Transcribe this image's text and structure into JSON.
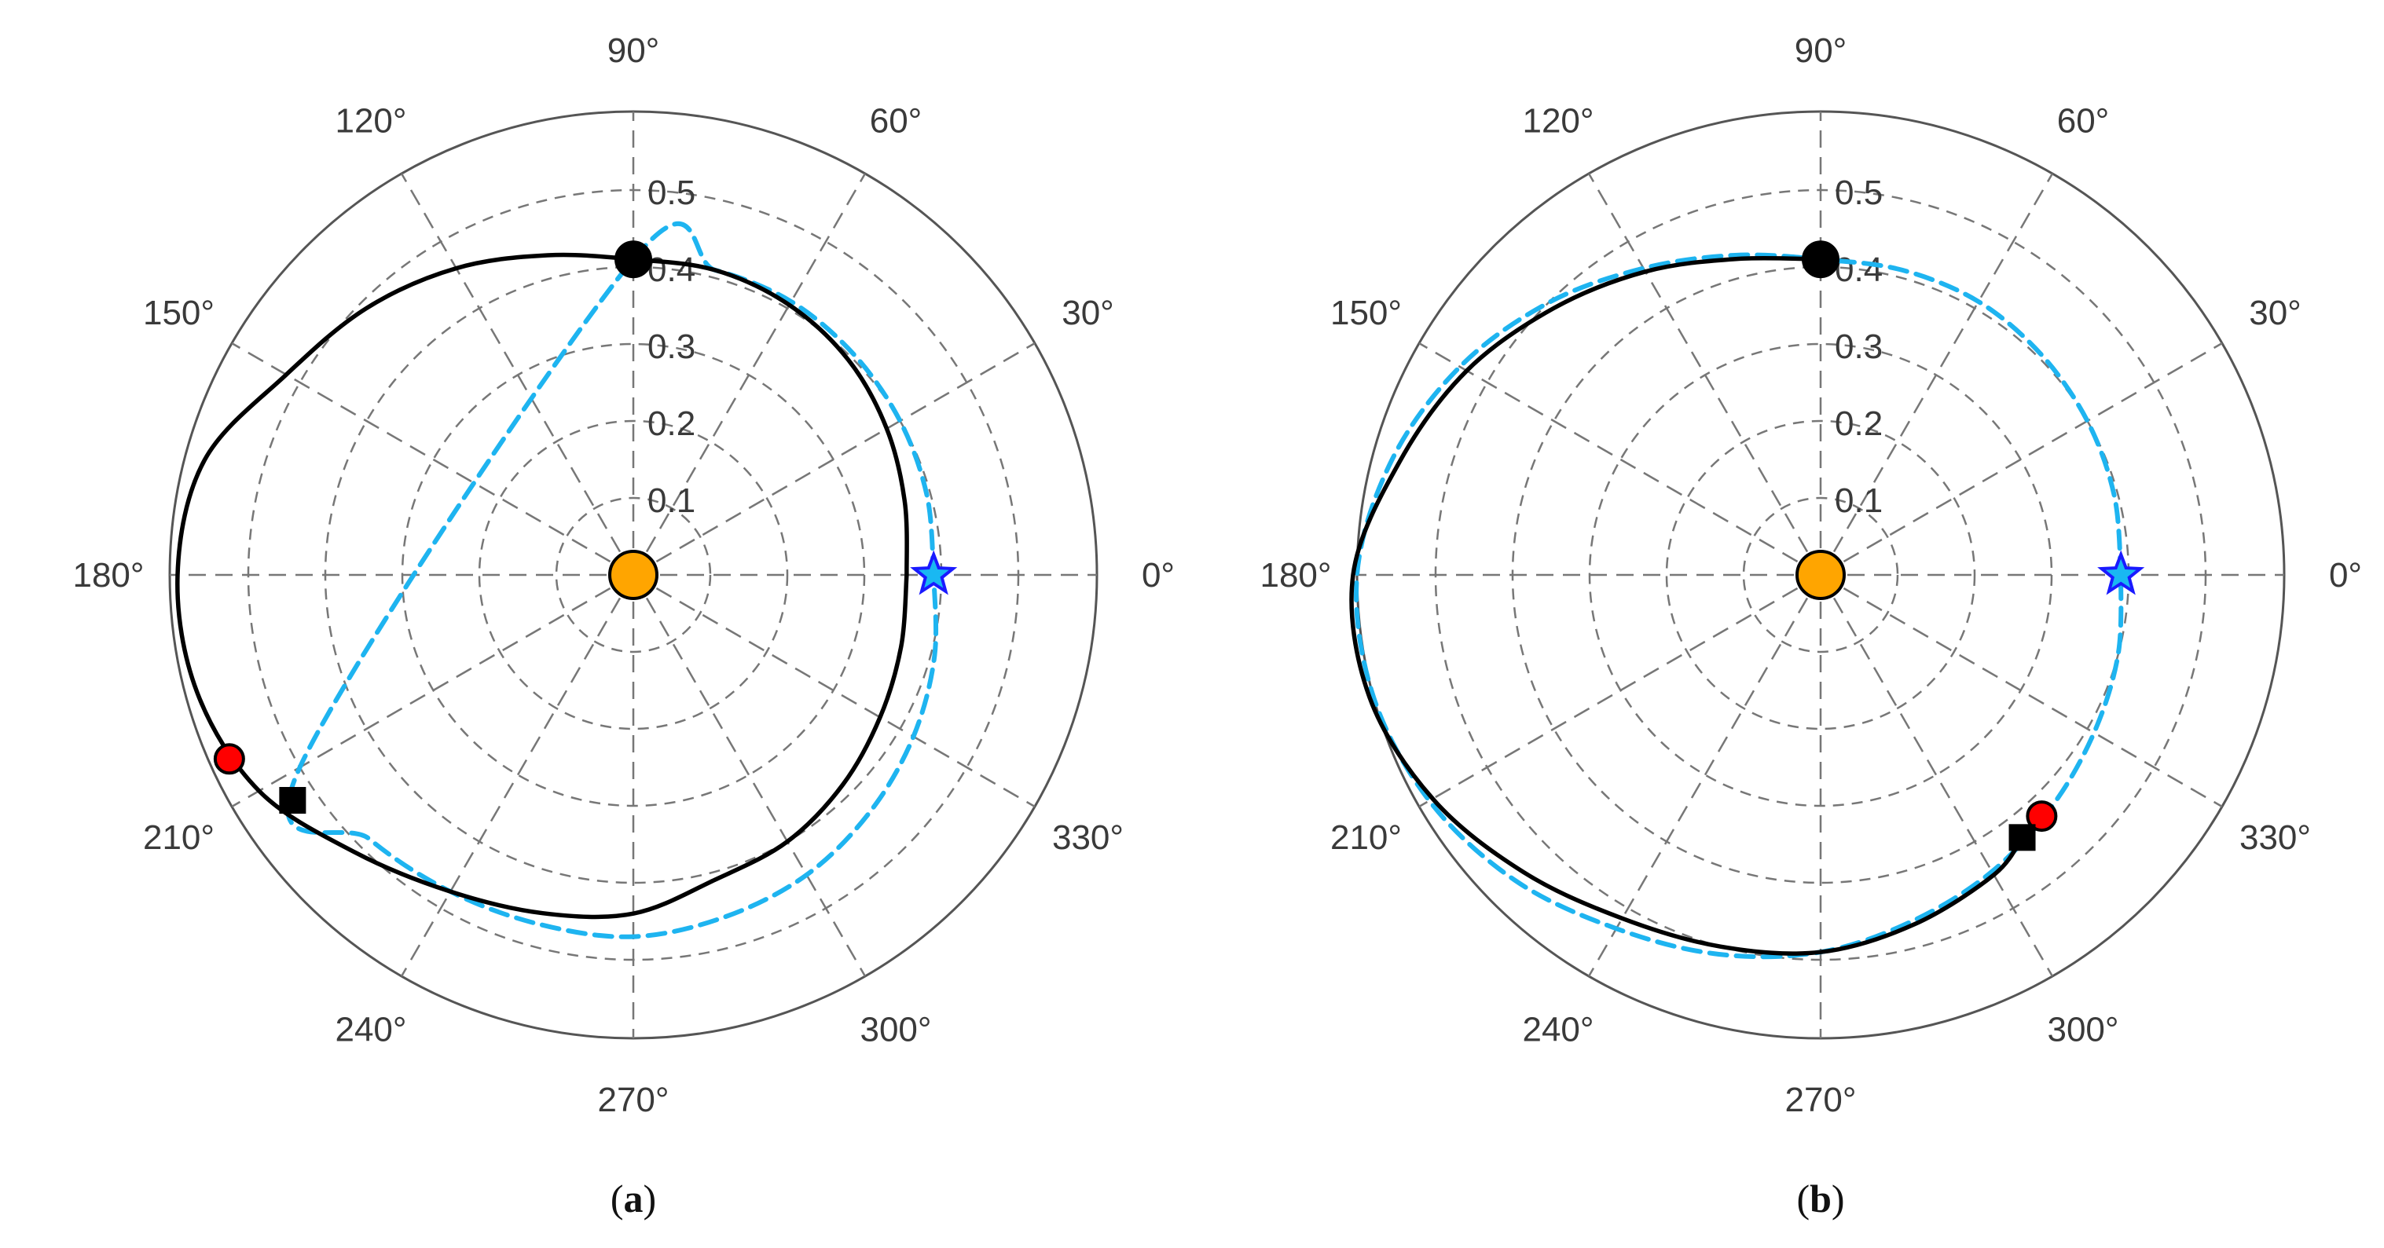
{
  "chart_data": [
    {
      "type": "line",
      "projection": "polar",
      "panel_label": "a",
      "theta_ticks": [
        "0°",
        "30°",
        "60°",
        "90°",
        "120°",
        "150°",
        "180°",
        "210°",
        "240°",
        "270°",
        "300°",
        "330°"
      ],
      "r_ticks": [
        "0.1",
        "0.2",
        "0.3",
        "0.4",
        "0.5"
      ],
      "r_range": [
        0,
        0.5
      ],
      "grid": true,
      "series": [
        {
          "style": "dashed",
          "color": "#1eb4f0",
          "theta_deg": [
            0,
            15,
            30,
            45,
            60,
            75,
            90,
            210,
            225,
            240,
            255,
            270,
            285,
            300,
            315,
            330,
            345,
            360
          ],
          "r": [
            0.39,
            0.395,
            0.4,
            0.405,
            0.41,
            0.41,
            0.41,
            0.5,
            0.485,
            0.475,
            0.47,
            0.47,
            0.46,
            0.45,
            0.435,
            0.42,
            0.405,
            0.39
          ]
        },
        {
          "style": "solid",
          "color": "#000000",
          "theta_deg": [
            0,
            15,
            30,
            45,
            60,
            75,
            90,
            105,
            120,
            135,
            150,
            165,
            180,
            195,
            210,
            225,
            240,
            255,
            270,
            285,
            300,
            315,
            330,
            345,
            360
          ],
          "r": [
            0.355,
            0.365,
            0.38,
            0.395,
            0.405,
            0.41,
            0.41,
            0.43,
            0.46,
            0.49,
            0.52,
            0.575,
            0.59,
            0.585,
            0.56,
            0.51,
            0.475,
            0.455,
            0.44,
            0.41,
            0.4,
            0.385,
            0.37,
            0.36,
            0.355
          ]
        }
      ],
      "markers": [
        {
          "shape": "circle",
          "fill": "#ffa500",
          "theta_deg": 0,
          "r": 0
        },
        {
          "shape": "star",
          "fill": "#1a1aff",
          "theta_deg": 0,
          "r": 0.39
        },
        {
          "shape": "circle",
          "fill": "#000000",
          "theta_deg": 90,
          "r": 0.41
        },
        {
          "shape": "circle",
          "fill": "#ff0000",
          "theta_deg": 204.5,
          "r": 0.575
        },
        {
          "shape": "square",
          "fill": "#000000",
          "theta_deg": 213.5,
          "r": 0.53
        }
      ]
    },
    {
      "type": "line",
      "projection": "polar",
      "panel_label": "b",
      "theta_ticks": [
        "0°",
        "30°",
        "60°",
        "90°",
        "120°",
        "150°",
        "180°",
        "210°",
        "240°",
        "270°",
        "300°",
        "330°"
      ],
      "r_ticks": [
        "0.1",
        "0.2",
        "0.3",
        "0.4",
        "0.5"
      ],
      "r_range": [
        0,
        0.5
      ],
      "grid": true,
      "series": [
        {
          "style": "dashed",
          "color": "#1eb4f0",
          "theta_deg": [
            0,
            15,
            30,
            45,
            60,
            75,
            90,
            105,
            120,
            135,
            150,
            165,
            180,
            195,
            210,
            225,
            240,
            255,
            270,
            285,
            300,
            315,
            330,
            345,
            360
          ],
          "r": [
            0.39,
            0.395,
            0.4,
            0.405,
            0.41,
            0.41,
            0.41,
            0.43,
            0.46,
            0.5,
            0.54,
            0.575,
            0.6,
            0.6,
            0.585,
            0.56,
            0.53,
            0.51,
            0.49,
            0.465,
            0.445,
            0.425,
            0.41,
            0.4,
            0.39
          ]
        },
        {
          "style": "solid",
          "color": "#000000",
          "theta_deg": [
            90,
            105,
            120,
            135,
            150,
            165,
            180,
            195,
            210,
            225,
            240,
            255,
            270,
            285,
            300,
            307.5
          ],
          "r": [
            0.41,
            0.425,
            0.455,
            0.49,
            0.53,
            0.565,
            0.605,
            0.605,
            0.58,
            0.545,
            0.515,
            0.5,
            0.49,
            0.47,
            0.45,
            0.43
          ]
        }
      ],
      "markers": [
        {
          "shape": "circle",
          "fill": "#ffa500",
          "theta_deg": 0,
          "r": 0
        },
        {
          "shape": "star",
          "fill": "#1a1aff",
          "theta_deg": 0,
          "r": 0.39
        },
        {
          "shape": "circle",
          "fill": "#000000",
          "theta_deg": 90,
          "r": 0.41
        },
        {
          "shape": "circle",
          "fill": "#ff0000",
          "theta_deg": 312.5,
          "r": 0.425
        },
        {
          "shape": "square",
          "fill": "#000000",
          "theta_deg": 307.5,
          "r": 0.43
        }
      ]
    }
  ]
}
